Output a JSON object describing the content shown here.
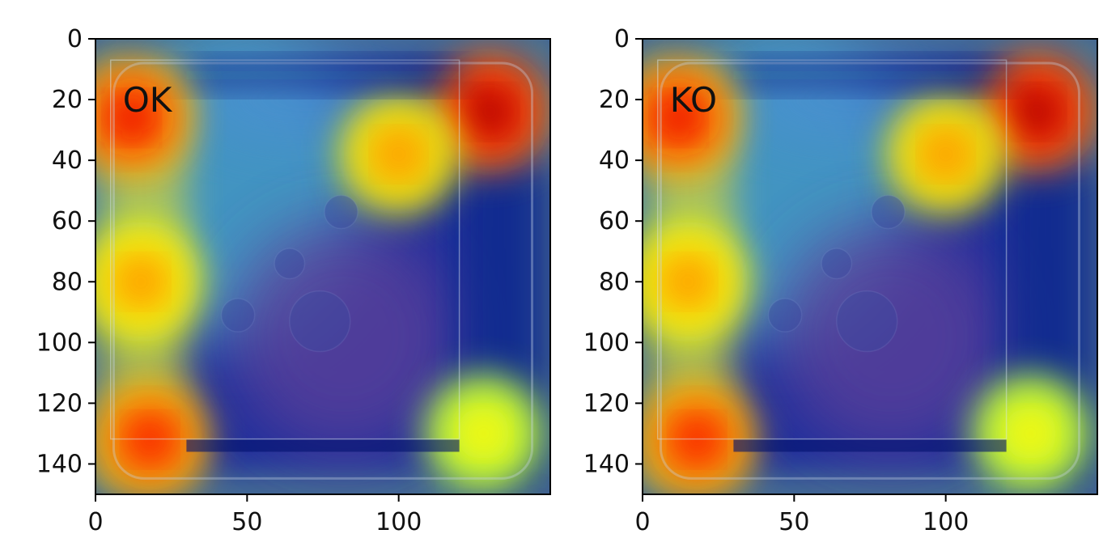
{
  "chart_data": [
    {
      "type": "heatmap",
      "panel_label": "OK",
      "xlim": [
        0,
        150
      ],
      "ylim": [
        150,
        0
      ],
      "x_ticks": [
        0,
        50,
        100
      ],
      "y_ticks": [
        0,
        20,
        40,
        60,
        80,
        100,
        120,
        140
      ],
      "colormap": "jet",
      "hotspots": [
        {
          "x": 130,
          "y": 24,
          "intensity": 1.0
        },
        {
          "x": 12,
          "y": 26,
          "intensity": 0.85
        },
        {
          "x": 18,
          "y": 132,
          "intensity": 0.8
        },
        {
          "x": 15,
          "y": 80,
          "intensity": 0.55
        },
        {
          "x": 100,
          "y": 38,
          "intensity": 0.55
        },
        {
          "x": 128,
          "y": 130,
          "intensity": 0.35
        }
      ]
    },
    {
      "type": "heatmap",
      "panel_label": "KO",
      "xlim": [
        0,
        150
      ],
      "ylim": [
        150,
        0
      ],
      "x_ticks": [
        0,
        50,
        100
      ],
      "y_ticks": [
        0,
        20,
        40,
        60,
        80,
        100,
        120,
        140
      ],
      "colormap": "jet",
      "hotspots": [
        {
          "x": 130,
          "y": 24,
          "intensity": 1.0
        },
        {
          "x": 12,
          "y": 26,
          "intensity": 0.85
        },
        {
          "x": 18,
          "y": 132,
          "intensity": 0.8
        },
        {
          "x": 15,
          "y": 80,
          "intensity": 0.55
        },
        {
          "x": 100,
          "y": 38,
          "intensity": 0.55
        },
        {
          "x": 128,
          "y": 130,
          "intensity": 0.35
        }
      ]
    }
  ]
}
